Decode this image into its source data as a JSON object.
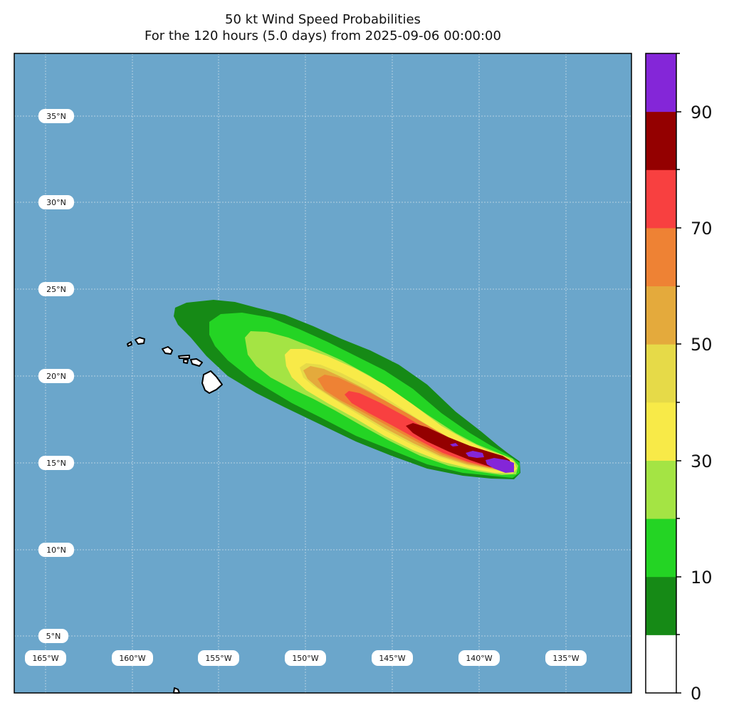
{
  "title": {
    "line1": "50 kt Wind Speed Probabilities",
    "line2": "For the 120 hours (5.0 days) from 2025-09-06 00:00:00"
  },
  "map": {
    "ocean_color": "#6ba6cb",
    "land_color": "#ffffff",
    "grid": true,
    "latitude_labels": [
      "35°N",
      "30°N",
      "25°N",
      "20°N",
      "15°N",
      "10°N",
      "5°N"
    ],
    "longitude_labels": [
      "165°W",
      "160°W",
      "155°W",
      "150°W",
      "145°W",
      "140°W",
      "135°W"
    ]
  },
  "colorbar": {
    "tick_labels": [
      "0",
      "10",
      "30",
      "50",
      "70",
      "90"
    ],
    "levels": [
      {
        "range": [
          0,
          5
        ],
        "color": "#ffffff"
      },
      {
        "range": [
          5,
          10
        ],
        "color": "#168a16"
      },
      {
        "range": [
          10,
          20
        ],
        "color": "#24d424"
      },
      {
        "range": [
          20,
          30
        ],
        "color": "#a4e444"
      },
      {
        "range": [
          30,
          40
        ],
        "color": "#f8ea48"
      },
      {
        "range": [
          40,
          50
        ],
        "color": "#e6da48"
      },
      {
        "range": [
          50,
          60
        ],
        "color": "#e4aa3c"
      },
      {
        "range": [
          60,
          70
        ],
        "color": "#ee8234"
      },
      {
        "range": [
          70,
          80
        ],
        "color": "#f84040"
      },
      {
        "range": [
          80,
          90
        ],
        "color": "#940000"
      },
      {
        "range": [
          90,
          100
        ],
        "color": "#8426d8"
      }
    ]
  }
}
